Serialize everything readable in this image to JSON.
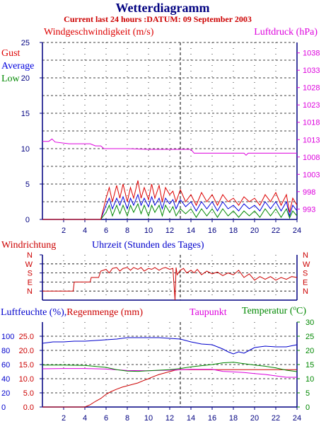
{
  "header": {
    "title": "Wetterdiagramm",
    "subtitle": "Current last 24 hours :DATUM: 09 September 2003"
  },
  "colors": {
    "gust": "#dd0000",
    "average": "#0000dd",
    "low": "#008800",
    "pressure": "#dd00dd",
    "winddir": "#cc0000",
    "humidity": "#0000cc",
    "rain": "#cc0000",
    "dewpoint": "#dd00dd",
    "temperature": "#008800",
    "axis": "#000080",
    "grid": "#000000",
    "now_line": "#000000"
  },
  "chart_data": [
    {
      "type": "line",
      "id": "wind",
      "left_label": "Windgeschwindigkeit (m/s)",
      "right_label": "Luftdruck (hPa)",
      "legend": [
        "Gust",
        "Average",
        "Low"
      ],
      "x_ticks": [
        "2",
        "4",
        "6",
        "8",
        "10",
        "12",
        "14",
        "16",
        "18",
        "20",
        "22",
        "24"
      ],
      "xlim": [
        0,
        24
      ],
      "left_ylim": [
        0,
        25
      ],
      "left_ticks": [
        "0",
        "5",
        "10",
        "15",
        "20",
        "25"
      ],
      "right_ylim": [
        990,
        1041
      ],
      "right_ticks": [
        "993",
        "998",
        "1003",
        "1008",
        "1013",
        "1018",
        "1023",
        "1028",
        "1033",
        "1038"
      ],
      "now_marker_hour": 13,
      "series": [
        {
          "name": "Gust",
          "x": [
            0,
            4.5,
            5.5,
            6,
            6.3,
            6.6,
            7,
            7.3,
            7.6,
            8,
            8.3,
            8.6,
            9,
            9.3,
            9.6,
            10,
            10.3,
            10.6,
            11,
            11.3,
            11.6,
            12,
            12.3,
            12.6,
            13,
            13.5,
            14,
            14.5,
            15,
            15.5,
            16,
            16.5,
            17,
            17.5,
            18,
            18.5,
            19,
            19.5,
            20,
            20.5,
            21,
            21.5,
            22,
            22.5,
            23,
            23.3,
            23.6,
            24
          ],
          "y": [
            0,
            0,
            0,
            3.0,
            4.5,
            2.5,
            4.8,
            3.0,
            5.0,
            2.5,
            4.5,
            3.0,
            5.5,
            3.0,
            4.5,
            2.8,
            5.0,
            3.0,
            4.8,
            2.5,
            4.5,
            3.5,
            4.0,
            2.5,
            4.2,
            2.5,
            3.5,
            2.0,
            3.8,
            2.5,
            3.5,
            2.0,
            3.5,
            2.5,
            3.0,
            2.0,
            3.2,
            2.5,
            3.0,
            2.0,
            3.5,
            2.5,
            3.8,
            2.0,
            3.5,
            1.0,
            3.0,
            2.0
          ]
        },
        {
          "name": "Average",
          "x": [
            0,
            4.5,
            5.5,
            6,
            6.3,
            6.6,
            7,
            7.3,
            7.6,
            8,
            8.3,
            8.6,
            9,
            9.3,
            9.6,
            10,
            10.3,
            10.6,
            11,
            11.3,
            11.6,
            12,
            12.3,
            12.6,
            13,
            13.5,
            14,
            14.5,
            15,
            15.5,
            16,
            16.5,
            17,
            17.5,
            18,
            18.5,
            19,
            19.5,
            20,
            20.5,
            21,
            21.5,
            22,
            22.5,
            23,
            23.3,
            23.6,
            24
          ],
          "y": [
            0,
            0,
            0,
            2.0,
            3.0,
            1.5,
            3.0,
            2.0,
            3.2,
            1.5,
            3.0,
            2.0,
            3.5,
            2.0,
            3.0,
            1.8,
            3.2,
            2.0,
            3.0,
            1.5,
            3.0,
            2.2,
            2.8,
            1.5,
            2.8,
            1.8,
            2.5,
            1.2,
            2.5,
            1.5,
            2.5,
            1.2,
            2.5,
            1.5,
            2.0,
            1.2,
            2.2,
            1.5,
            2.0,
            1.2,
            2.5,
            1.5,
            2.5,
            1.2,
            2.5,
            0.5,
            2.0,
            1.2
          ]
        },
        {
          "name": "Low",
          "x": [
            0,
            4.5,
            5.5,
            6,
            6.3,
            6.6,
            7,
            7.3,
            7.6,
            8,
            8.3,
            8.6,
            9,
            9.3,
            9.6,
            10,
            10.3,
            10.6,
            11,
            11.3,
            11.6,
            12,
            12.3,
            12.6,
            13,
            13.5,
            14,
            14.5,
            15,
            15.5,
            16,
            16.5,
            17,
            17.5,
            18,
            18.5,
            19,
            19.5,
            20,
            20.5,
            21,
            21.5,
            22,
            22.5,
            23,
            23.3,
            23.6,
            24
          ],
          "y": [
            0,
            0,
            0,
            1.0,
            2.0,
            0.5,
            2.0,
            0.8,
            2.0,
            0.5,
            2.0,
            1.0,
            2.2,
            0.8,
            2.0,
            0.5,
            2.0,
            1.0,
            2.0,
            0.5,
            2.0,
            1.0,
            1.8,
            0.5,
            1.5,
            0.8,
            1.5,
            0.3,
            1.5,
            0.5,
            1.5,
            0.3,
            1.5,
            0.5,
            1.2,
            0.3,
            1.2,
            0.5,
            1.2,
            0.3,
            1.5,
            0.5,
            1.5,
            0.3,
            1.5,
            0.2,
            1.2,
            0.5
          ]
        },
        {
          "name": "Luftdruck",
          "axis": "right",
          "x": [
            0,
            0.6,
            0.9,
            1.2,
            2.5,
            4.5,
            5.0,
            5.5,
            5.8,
            8,
            10,
            13,
            14,
            14.3,
            17,
            19,
            19.2,
            19.4,
            20,
            22,
            24
          ],
          "y": [
            1012.5,
            1012.5,
            1013.2,
            1012.3,
            1011.8,
            1011.8,
            1011.2,
            1011.2,
            1010.4,
            1010.4,
            1010.2,
            1010.2,
            1010.2,
            1009.1,
            1009.1,
            1009.1,
            1008.5,
            1009.1,
            1009.1,
            1009.1,
            1009.1
          ]
        }
      ]
    },
    {
      "type": "line",
      "id": "direction",
      "left_label": "Windrichtung",
      "x_label": "Uhrzeit (Stunden des Tages)",
      "xlim": [
        0,
        24
      ],
      "ylim": [
        0,
        5
      ],
      "dir_ticks": [
        "N",
        "W",
        "S",
        "E",
        "N"
      ],
      "now_marker_hour": 13,
      "series": [
        {
          "name": "Windrichtung",
          "x": [
            0,
            2.9,
            3.0,
            4.5,
            4.6,
            5.3,
            5.5,
            6,
            6.3,
            6.6,
            7,
            7.3,
            7.6,
            8,
            8.3,
            8.6,
            9,
            9.3,
            9.6,
            10,
            10.3,
            10.6,
            11,
            11.3,
            11.6,
            12,
            12.3,
            12.5,
            12.6,
            12.7,
            13,
            13.3,
            13.6,
            14,
            14.3,
            14.6,
            15,
            15.5,
            16,
            16.5,
            17,
            17.5,
            18,
            18.5,
            19,
            19.5,
            20,
            20.5,
            21,
            21.5,
            22,
            22.5,
            23,
            23.5,
            24
          ],
          "y": [
            1.0,
            1.0,
            2.0,
            2.0,
            2.5,
            2.5,
            3.2,
            3.4,
            3.0,
            3.5,
            3.6,
            3.2,
            3.5,
            3.6,
            3.3,
            3.6,
            3.4,
            3.6,
            3.2,
            3.5,
            3.4,
            3.6,
            3.3,
            3.5,
            3.6,
            3.4,
            3.5,
            0.0,
            3.6,
            2.8,
            3.3,
            3.5,
            3.0,
            3.3,
            3.0,
            3.4,
            2.8,
            3.2,
            2.9,
            3.1,
            2.7,
            3.0,
            2.8,
            3.3,
            2.5,
            2.9,
            2.2,
            2.6,
            2.3,
            2.6,
            2.2,
            2.5,
            2.3,
            2.6,
            2.5
          ]
        }
      ]
    },
    {
      "type": "line",
      "id": "humidity",
      "labels": [
        "Luftfeuchte (%),",
        "Regenmenge (mm)",
        "Taupunkt",
        "Temperatur (",
        "C)"
      ],
      "degree_symbol": "o",
      "x_ticks": [
        "2",
        "4",
        "6",
        "8",
        "10",
        "12",
        "14",
        "16",
        "18",
        "20",
        "22",
        "24"
      ],
      "xlim": [
        0,
        24
      ],
      "left_ylim": [
        0,
        120
      ],
      "humidity_ticks": [
        "0",
        "20",
        "40",
        "60",
        "80",
        "100"
      ],
      "rain_ticks": [
        "0.0",
        "5.0",
        "10.0",
        "15.0",
        "20.0",
        "25.0"
      ],
      "right_ylim": [
        0,
        30
      ],
      "right_ticks": [
        "0",
        "5",
        "10",
        "15",
        "20",
        "25",
        "30"
      ],
      "now_marker_hour": 13,
      "series": [
        {
          "name": "Luftfeuchte",
          "axis": "humidity",
          "x": [
            0,
            1,
            2,
            3,
            4,
            5,
            6,
            7,
            8,
            9,
            10,
            11,
            12,
            13,
            14,
            15,
            16,
            17,
            17.5,
            18,
            18.5,
            19,
            19.5,
            20,
            21,
            22,
            23,
            24
          ],
          "y": [
            90,
            92,
            92,
            93,
            93,
            94,
            95,
            96,
            98,
            98,
            98,
            98,
            97,
            96,
            92,
            89,
            88,
            82,
            78,
            75,
            78,
            76,
            80,
            84,
            86,
            85,
            85,
            88
          ]
        },
        {
          "name": "Regenmenge",
          "axis": "rain",
          "x": [
            0,
            4.0,
            4.5,
            5.0,
            5.5,
            6.0,
            6.5,
            7.0,
            7.5,
            8.0,
            8.5,
            9.0,
            9.5,
            10.0,
            10.5,
            11.0,
            11.5,
            12.0,
            12.5,
            13.0,
            14,
            15,
            16,
            17,
            18,
            19,
            20,
            21,
            22,
            23,
            24
          ],
          "y": [
            0,
            0,
            0.8,
            2.0,
            3.0,
            4.5,
            5.5,
            6.3,
            7.0,
            7.5,
            8.0,
            8.5,
            9.3,
            10.0,
            10.8,
            11.5,
            12.0,
            12.5,
            13.0,
            13.2,
            13.2,
            13.2,
            13.2,
            13.2,
            13.2,
            13.2,
            13.2,
            13.2,
            13.2,
            13.2,
            13.2
          ]
        },
        {
          "name": "Taupunkt",
          "axis": "right",
          "x": [
            0,
            2,
            4,
            6,
            8,
            10,
            12,
            13,
            14,
            16,
            17,
            18,
            19,
            20,
            21,
            22,
            23,
            24
          ],
          "y": [
            13.5,
            13.6,
            13.6,
            13.4,
            12.9,
            12.8,
            13.0,
            13.2,
            13.3,
            13.3,
            12.6,
            12.4,
            12.2,
            11.8,
            11.5,
            11.0,
            10.5,
            10.5
          ]
        },
        {
          "name": "Temperatur",
          "axis": "right",
          "x": [
            0,
            2,
            4,
            6,
            7,
            8,
            9,
            10,
            12,
            13,
            14,
            16,
            17,
            18,
            19,
            20,
            21,
            22,
            23,
            24
          ],
          "y": [
            14.8,
            14.8,
            14.7,
            14.0,
            13.2,
            12.7,
            12.6,
            12.8,
            13.2,
            13.6,
            14.2,
            15.0,
            15.6,
            15.8,
            15.3,
            14.8,
            14.4,
            13.8,
            13.0,
            12.5
          ]
        }
      ]
    }
  ]
}
